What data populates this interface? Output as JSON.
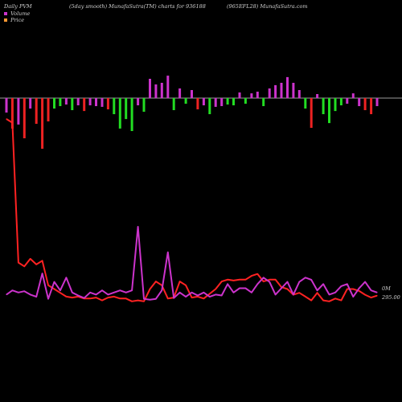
{
  "header": {
    "left": "Daily PVM",
    "middle": "(5day smooth) MunafaSutra(TM) charts for 936188",
    "right": "(965EFL28) MunafaSutra.com"
  },
  "legend": [
    {
      "label": "Volume",
      "color": "#cc33cc"
    },
    {
      "label": "Price",
      "color": "#ff3333"
    }
  ],
  "labels": {
    "volume_last": "0M",
    "price_last": "295.00"
  },
  "colors": {
    "background": "#000000",
    "baseline": "#9a9a9a",
    "bar_up": "#22dd22",
    "bar_down": "#ee2222",
    "bar_neutral": "#cc33cc",
    "price_line": "#ff2222",
    "volume_line": "#cc33cc"
  },
  "chart_data": {
    "type": "line",
    "bars": [
      {
        "dir": "neutral",
        "v": -13.3
      },
      {
        "dir": "down",
        "v": -28.1
      },
      {
        "dir": "neutral",
        "v": -24.4
      },
      {
        "dir": "down",
        "v": -37.0
      },
      {
        "dir": "neutral",
        "v": -9.6
      },
      {
        "dir": "down",
        "v": -23.7
      },
      {
        "dir": "down",
        "v": -46.7
      },
      {
        "dir": "down",
        "v": -21.5
      },
      {
        "dir": "up",
        "v": -9.6
      },
      {
        "dir": "up",
        "v": -7.4
      },
      {
        "dir": "neutral",
        "v": -5.9
      },
      {
        "dir": "up",
        "v": -11.1
      },
      {
        "dir": "neutral",
        "v": -6.7
      },
      {
        "dir": "down",
        "v": -11.9
      },
      {
        "dir": "neutral",
        "v": -6.7
      },
      {
        "dir": "neutral",
        "v": -7.4
      },
      {
        "dir": "neutral",
        "v": -8.1
      },
      {
        "dir": "down",
        "v": -10.4
      },
      {
        "dir": "up",
        "v": -14.8
      },
      {
        "dir": "up",
        "v": -28.1
      },
      {
        "dir": "up",
        "v": -19.3
      },
      {
        "dir": "up",
        "v": -30.4
      },
      {
        "dir": "neutral",
        "v": -6.7
      },
      {
        "dir": "up",
        "v": -12.6
      },
      {
        "dir": "neutral",
        "v": 17.8
      },
      {
        "dir": "neutral",
        "v": 12.6
      },
      {
        "dir": "neutral",
        "v": 14.1
      },
      {
        "dir": "neutral",
        "v": 20.7
      },
      {
        "dir": "up",
        "v": -11.1
      },
      {
        "dir": "neutral",
        "v": 8.9
      },
      {
        "dir": "up",
        "v": -5.2
      },
      {
        "dir": "neutral",
        "v": 7.4
      },
      {
        "dir": "down",
        "v": -10.4
      },
      {
        "dir": "neutral",
        "v": -6.7
      },
      {
        "dir": "up",
        "v": -14.8
      },
      {
        "dir": "neutral",
        "v": -8.1
      },
      {
        "dir": "neutral",
        "v": -7.4
      },
      {
        "dir": "up",
        "v": -5.9
      },
      {
        "dir": "up",
        "v": -6.7
      },
      {
        "dir": "neutral",
        "v": 5.2
      },
      {
        "dir": "up",
        "v": -5.2
      },
      {
        "dir": "neutral",
        "v": 4.4
      },
      {
        "dir": "neutral",
        "v": 5.9
      },
      {
        "dir": "up",
        "v": -7.4
      },
      {
        "dir": "neutral",
        "v": 8.9
      },
      {
        "dir": "neutral",
        "v": 11.9
      },
      {
        "dir": "neutral",
        "v": 14.1
      },
      {
        "dir": "neutral",
        "v": 19.3
      },
      {
        "dir": "neutral",
        "v": 14.1
      },
      {
        "dir": "neutral",
        "v": 7.4
      },
      {
        "dir": "up",
        "v": -9.6
      },
      {
        "dir": "down",
        "v": -27.4
      },
      {
        "dir": "neutral",
        "v": 3.7
      },
      {
        "dir": "up",
        "v": -14.8
      },
      {
        "dir": "up",
        "v": -23.0
      },
      {
        "dir": "up",
        "v": -11.9
      },
      {
        "dir": "up",
        "v": -6.7
      },
      {
        "dir": "neutral",
        "v": -5.2
      },
      {
        "dir": "neutral",
        "v": 4.4
      },
      {
        "dir": "neutral",
        "v": -7.4
      },
      {
        "dir": "down",
        "v": -11.1
      },
      {
        "dir": "down",
        "v": -14.8
      },
      {
        "dir": "neutral",
        "v": -7.4
      }
    ],
    "price_series": [
      100,
      98,
      24,
      22,
      26,
      23,
      25,
      12,
      10,
      8,
      6,
      5.5,
      6,
      5,
      5,
      5.5,
      4,
      5.5,
      6,
      5,
      5,
      3.5,
      4,
      3.5,
      10,
      14,
      12,
      5,
      5.5,
      14,
      12,
      5.5,
      6,
      5,
      7.5,
      10,
      14,
      15,
      14.5,
      15,
      15,
      17,
      18,
      14,
      15,
      15,
      11,
      10,
      7,
      8,
      6,
      4,
      8,
      4,
      3.5,
      5,
      4,
      10,
      10,
      9,
      7,
      5.5,
      6.5
    ],
    "volume_series": [
      2,
      3,
      2.5,
      2.8,
      2,
      1.5,
      7,
      1,
      5,
      3,
      6,
      2.5,
      1.8,
      1.2,
      2.5,
      2,
      3,
      2,
      2.5,
      3,
      2.5,
      3,
      18,
      1,
      0.8,
      1,
      3,
      12,
      1.2,
      2.5,
      1.5,
      2.5,
      1.8,
      2.5,
      1.5,
      2,
      1.8,
      4.5,
      2.5,
      3.5,
      3.5,
      2.5,
      4.5,
      6,
      5,
      2,
      3.5,
      5,
      2,
      5,
      6,
      5.5,
      3,
      4.5,
      2,
      2.5,
      4,
      4.5,
      1.5,
      3.5,
      5,
      3,
      2.5
    ]
  }
}
